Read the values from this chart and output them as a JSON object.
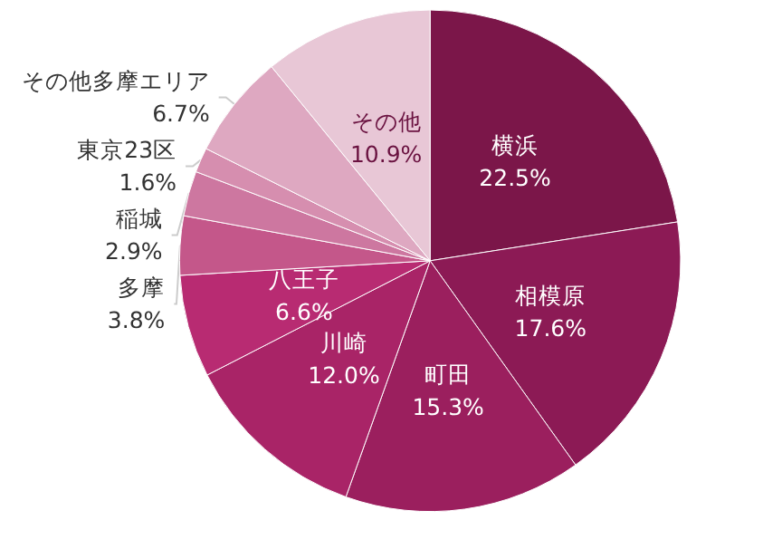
{
  "chart_data": {
    "type": "pie",
    "categories": [
      "横浜",
      "相模原",
      "町田",
      "川崎",
      "八王子",
      "多摩",
      "稲城",
      "東京23区",
      "その他多摩エリア",
      "その他"
    ],
    "values": [
      22.5,
      17.6,
      15.3,
      12.0,
      6.6,
      3.8,
      2.9,
      1.6,
      6.7,
      10.9
    ],
    "value_labels": [
      "22.5%",
      "17.6%",
      "15.3%",
      "12.0%",
      "6.6%",
      "3.8%",
      "2.9%",
      "1.6%",
      "6.7%",
      "10.9%"
    ],
    "colors": [
      "#7b1649",
      "#8c1a55",
      "#9b1f5e",
      "#a92467",
      "#b82b72",
      "#c4578a",
      "#cd77a0",
      "#d68eaf",
      "#dea8c1",
      "#e8c7d6"
    ]
  }
}
